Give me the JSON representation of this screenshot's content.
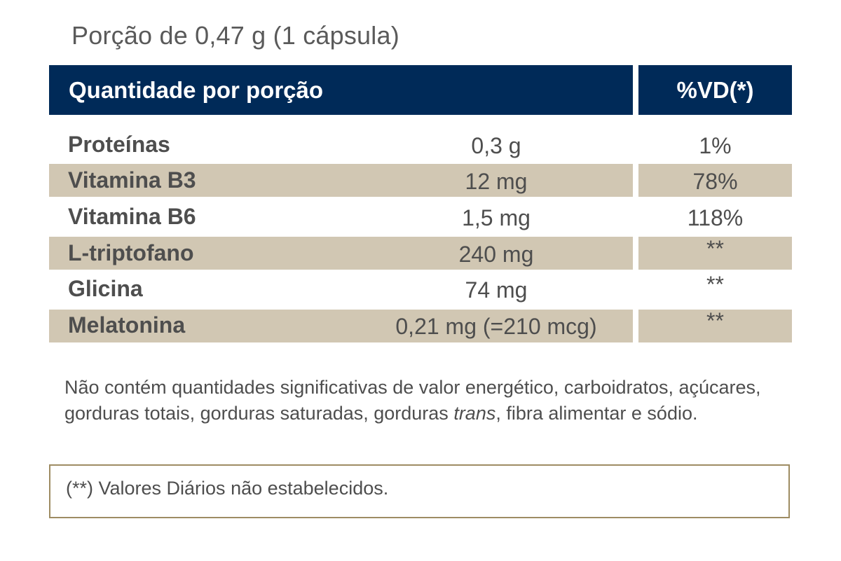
{
  "serving_size": "Porção de 0,47 g (1 cápsula)",
  "table": {
    "header_quantity": "Quantidade por porção",
    "header_vd": "%VD(*)",
    "rows": [
      {
        "name": "Proteínas",
        "amount": "0,3 g",
        "vd": "1%"
      },
      {
        "name": "Vitamina B3",
        "amount": "12 mg",
        "vd": "78%"
      },
      {
        "name": "Vitamina B6",
        "amount": "1,5 mg",
        "vd": "118%"
      },
      {
        "name": "L-triptofano",
        "amount": "240 mg",
        "vd": "**"
      },
      {
        "name": "Glicina",
        "amount": "74 mg",
        "vd": "**"
      },
      {
        "name": "Melatonina",
        "amount": "0,21 mg (=210 mcg)",
        "vd": "**"
      }
    ]
  },
  "note": {
    "part1": "Não contém quantidades significativas de valor energético, carboidratos, açúcares, gorduras totais, gorduras saturadas, gorduras ",
    "italic": "trans",
    "part2": ", fibra alimentar e sódio."
  },
  "footnote": "(**) Valores Diários não estabelecidos.",
  "colors": {
    "header_bg": "#002a58",
    "band_bg": "#d1c7b3",
    "box_border": "#9e8c63"
  }
}
